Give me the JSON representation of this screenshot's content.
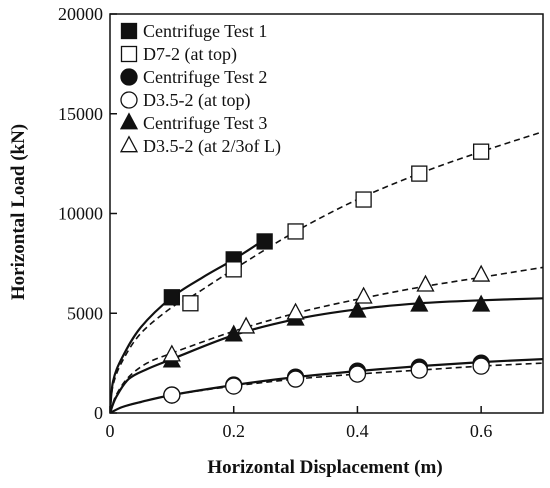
{
  "chart_data": {
    "type": "scatter",
    "xlabel": "Horizontal Displacement (m)",
    "ylabel": "Horizontal Load (kN)",
    "xlim": [
      0,
      0.7
    ],
    "ylim": [
      0,
      20000
    ],
    "x_ticks": [
      0,
      0.2,
      0.4,
      0.6
    ],
    "x_tick_labels": [
      "0",
      "0.2",
      "0.4",
      "0.6"
    ],
    "y_ticks": [
      0,
      5000,
      10000,
      15000,
      20000
    ],
    "y_tick_labels": [
      "0",
      "5000",
      "10000",
      "15000",
      "20000"
    ],
    "grid": false,
    "legend_position": "top-left",
    "series": [
      {
        "name": "Centrifuge Test 1",
        "marker": "square-filled",
        "line": "solid",
        "curve": [
          [
            0,
            0
          ],
          [
            0.005,
            1600
          ],
          [
            0.02,
            2800
          ],
          [
            0.05,
            4300
          ],
          [
            0.1,
            5800
          ],
          [
            0.15,
            6800
          ],
          [
            0.2,
            7700
          ],
          [
            0.25,
            8700
          ]
        ],
        "points": [
          [
            0.1,
            5800
          ],
          [
            0.2,
            7700
          ],
          [
            0.25,
            8600
          ]
        ]
      },
      {
        "name": "D7-2 (at top)",
        "marker": "square-open",
        "line": "dashed",
        "curve": [
          [
            0,
            0
          ],
          [
            0.005,
            1400
          ],
          [
            0.02,
            2600
          ],
          [
            0.05,
            4000
          ],
          [
            0.1,
            5300
          ],
          [
            0.13,
            5800
          ],
          [
            0.2,
            7200
          ],
          [
            0.3,
            9100
          ],
          [
            0.4,
            10700
          ],
          [
            0.5,
            12000
          ],
          [
            0.6,
            13100
          ],
          [
            0.7,
            14100
          ]
        ],
        "points": [
          [
            0.13,
            5500
          ],
          [
            0.2,
            7200
          ],
          [
            0.3,
            9100
          ],
          [
            0.41,
            10700
          ],
          [
            0.5,
            12000
          ],
          [
            0.6,
            13100
          ]
        ]
      },
      {
        "name": "Centrifuge Test 2",
        "marker": "circle-filled",
        "line": "solid",
        "curve": [
          [
            0,
            0
          ],
          [
            0.02,
            300
          ],
          [
            0.05,
            550
          ],
          [
            0.1,
            900
          ],
          [
            0.2,
            1400
          ],
          [
            0.3,
            1800
          ],
          [
            0.4,
            2100
          ],
          [
            0.5,
            2350
          ],
          [
            0.6,
            2550
          ],
          [
            0.7,
            2700
          ]
        ],
        "points": [
          [
            0.1,
            900
          ],
          [
            0.2,
            1400
          ],
          [
            0.3,
            1800
          ],
          [
            0.4,
            2100
          ],
          [
            0.5,
            2300
          ],
          [
            0.6,
            2500
          ]
        ]
      },
      {
        "name": "D3.5-2 (at top)",
        "marker": "circle-open",
        "line": "dashed",
        "curve": [
          [
            0,
            0
          ],
          [
            0.02,
            300
          ],
          [
            0.05,
            550
          ],
          [
            0.1,
            900
          ],
          [
            0.2,
            1350
          ],
          [
            0.3,
            1700
          ],
          [
            0.4,
            1950
          ],
          [
            0.5,
            2150
          ],
          [
            0.6,
            2350
          ],
          [
            0.7,
            2500
          ]
        ],
        "points": [
          [
            0.1,
            900
          ],
          [
            0.2,
            1350
          ],
          [
            0.3,
            1700
          ],
          [
            0.4,
            1950
          ],
          [
            0.5,
            2150
          ],
          [
            0.6,
            2350
          ]
        ]
      },
      {
        "name": "Centrifuge Test 3",
        "marker": "triangle-filled",
        "line": "solid",
        "curve": [
          [
            0,
            0
          ],
          [
            0.01,
            800
          ],
          [
            0.03,
            1700
          ],
          [
            0.06,
            2200
          ],
          [
            0.1,
            2700
          ],
          [
            0.2,
            3900
          ],
          [
            0.3,
            4700
          ],
          [
            0.4,
            5200
          ],
          [
            0.5,
            5500
          ],
          [
            0.6,
            5650
          ],
          [
            0.7,
            5750
          ]
        ],
        "points": [
          [
            0.1,
            2600
          ],
          [
            0.2,
            3900
          ],
          [
            0.3,
            4700
          ],
          [
            0.4,
            5100
          ],
          [
            0.5,
            5400
          ],
          [
            0.6,
            5400
          ]
        ]
      },
      {
        "name": "D3.5-2 (at 2/3of L)",
        "marker": "triangle-open",
        "line": "dashed",
        "curve": [
          [
            0,
            0
          ],
          [
            0.01,
            900
          ],
          [
            0.03,
            1800
          ],
          [
            0.06,
            2500
          ],
          [
            0.1,
            3000
          ],
          [
            0.2,
            4100
          ],
          [
            0.3,
            5000
          ],
          [
            0.4,
            5700
          ],
          [
            0.5,
            6300
          ],
          [
            0.6,
            6800
          ],
          [
            0.7,
            7300
          ]
        ],
        "points": [
          [
            0.1,
            2900
          ],
          [
            0.22,
            4300
          ],
          [
            0.3,
            5000
          ],
          [
            0.41,
            5800
          ],
          [
            0.51,
            6400
          ],
          [
            0.6,
            6900
          ]
        ]
      }
    ]
  }
}
